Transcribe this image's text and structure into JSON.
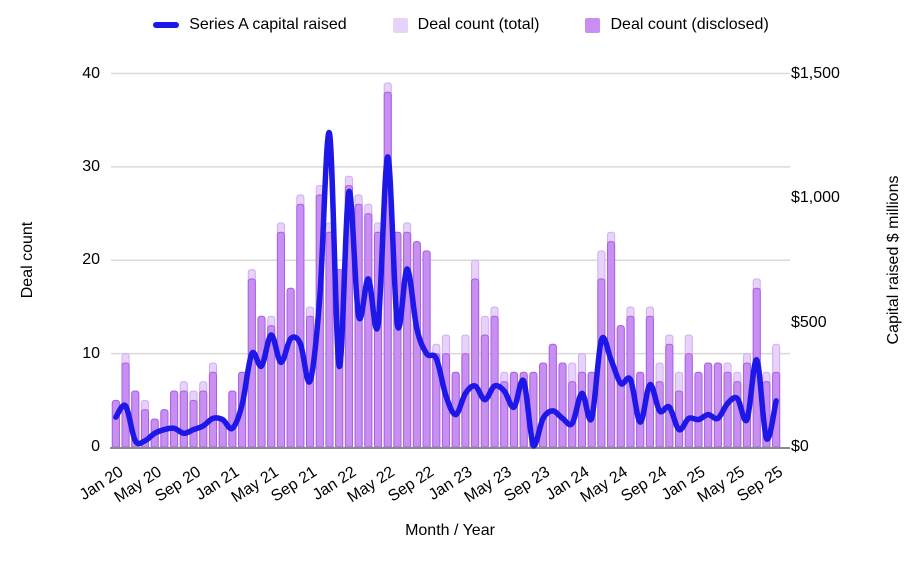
{
  "legend": {
    "items": [
      {
        "label": "Series A capital raised",
        "type": "line",
        "color": "#1d18e8"
      },
      {
        "label": "Deal count (total)",
        "type": "box",
        "color": "#e7d2fa"
      },
      {
        "label": "Deal count (disclosed)",
        "type": "box",
        "color": "#c88ef2"
      }
    ]
  },
  "axes": {
    "left": {
      "title": "Deal count",
      "ticks": [
        0,
        10,
        20,
        30,
        40
      ],
      "range": [
        0,
        40
      ]
    },
    "right": {
      "title": "Capital raised $ millions",
      "tick_labels": [
        "$0",
        "$500",
        "$1,000",
        "$1,500"
      ],
      "tick_values": [
        0,
        500,
        1000,
        1500
      ],
      "range": [
        0,
        1500
      ]
    },
    "x": {
      "title": "Month / Year",
      "tick_every": 4
    }
  },
  "colors": {
    "background": "#ffffff",
    "gridline": "#d9d9d9",
    "axis_line": "#8a8a8a",
    "line": "#1d18e8",
    "bar_total_fill": "#e7d2fa",
    "bar_total_stroke": "#d2adf3",
    "bar_disclosed_fill": "#c88ef2",
    "bar_disclosed_stroke": "#a760e3",
    "text": "#000000"
  },
  "chart_data": {
    "type": "combo",
    "subtypes": [
      "bar",
      "bar",
      "line"
    ],
    "title": "",
    "xlabel": "Month / Year",
    "ylabel_left": "Deal count",
    "ylabel_right": "Capital raised $ millions",
    "ylim_left": [
      0,
      40
    ],
    "ylim_right": [
      0,
      1500
    ],
    "grid": "horizontal",
    "legend_position": "top",
    "categories": [
      "Jan 20",
      "Feb 20",
      "Mar 20",
      "Apr 20",
      "May 20",
      "Jun 20",
      "Jul 20",
      "Aug 20",
      "Sep 20",
      "Oct 20",
      "Nov 20",
      "Dec 20",
      "Jan 21",
      "Feb 21",
      "Mar 21",
      "Apr 21",
      "May 21",
      "Jun 21",
      "Jul 21",
      "Aug 21",
      "Sep 21",
      "Oct 21",
      "Nov 21",
      "Dec 21",
      "Jan 22",
      "Feb 22",
      "Mar 22",
      "Apr 22",
      "May 22",
      "Jun 22",
      "Jul 22",
      "Aug 22",
      "Sep 22",
      "Oct 22",
      "Nov 22",
      "Dec 22",
      "Jan 23",
      "Feb 23",
      "Mar 23",
      "Apr 23",
      "May 23",
      "Jun 23",
      "Jul 23",
      "Aug 23",
      "Sep 23",
      "Oct 23",
      "Nov 23",
      "Dec 23",
      "Jan 24",
      "Feb 24",
      "Mar 24",
      "Apr 24",
      "May 24",
      "Jun 24",
      "Jul 24",
      "Aug 24",
      "Sep 24",
      "Oct 24",
      "Nov 24",
      "Dec 24",
      "Jan 25",
      "Feb 25",
      "Mar 25",
      "Apr 25",
      "May 25",
      "Jun 25",
      "Jul 25",
      "Aug 25",
      "Sep 25"
    ],
    "series": [
      {
        "name": "Deal count (total)",
        "type": "bar",
        "axis": "left",
        "values": [
          5,
          10,
          6,
          5,
          3,
          4,
          6,
          7,
          6,
          7,
          9,
          3,
          6,
          8,
          19,
          14,
          14,
          24,
          17,
          27,
          15,
          28,
          24,
          19,
          29,
          27,
          26,
          24,
          39,
          23,
          24,
          22,
          21,
          11,
          12,
          8,
          12,
          20,
          14,
          15,
          8,
          8,
          8,
          8,
          9,
          11,
          9,
          9,
          10,
          8,
          21,
          23,
          13,
          15,
          8,
          15,
          9,
          12,
          8,
          12,
          8,
          9,
          9,
          9,
          8,
          10,
          18,
          8,
          11
        ]
      },
      {
        "name": "Deal count (disclosed)",
        "type": "bar",
        "axis": "left",
        "values": [
          5,
          9,
          6,
          4,
          3,
          4,
          6,
          6,
          5,
          6,
          8,
          3,
          6,
          8,
          18,
          14,
          13,
          23,
          17,
          26,
          14,
          27,
          23,
          19,
          28,
          26,
          25,
          23,
          38,
          23,
          23,
          22,
          21,
          10,
          10,
          8,
          10,
          18,
          12,
          14,
          7,
          8,
          8,
          8,
          9,
          11,
          9,
          7,
          8,
          8,
          18,
          22,
          13,
          14,
          8,
          14,
          7,
          11,
          6,
          10,
          8,
          9,
          9,
          8,
          7,
          9,
          17,
          7,
          8
        ]
      },
      {
        "name": "Series A capital raised",
        "type": "line",
        "axis": "right",
        "values": [
          120,
          165,
          25,
          25,
          55,
          70,
          75,
          55,
          70,
          85,
          115,
          110,
          75,
          170,
          375,
          325,
          450,
          340,
          435,
          415,
          265,
          600,
          1260,
          325,
          1025,
          525,
          675,
          490,
          1165,
          490,
          715,
          475,
          375,
          355,
          205,
          130,
          215,
          245,
          190,
          245,
          225,
          160,
          265,
          5,
          115,
          145,
          115,
          95,
          215,
          115,
          430,
          350,
          255,
          270,
          100,
          250,
          145,
          160,
          70,
          115,
          110,
          130,
          115,
          175,
          195,
          110,
          350,
          35,
          185
        ]
      }
    ]
  }
}
